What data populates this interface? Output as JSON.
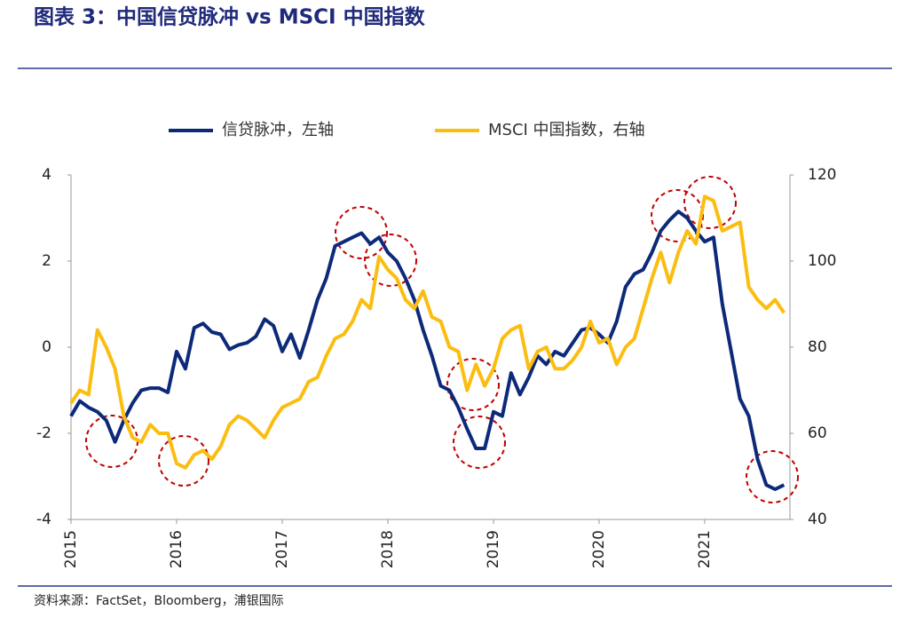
{
  "chart_data": {
    "type": "line",
    "title": "图表 3：中国信贷脉冲 vs MSCI 中国指数",
    "source": "资料来源：FactSet，Bloomberg，浦银国际",
    "categories": [
      "2015",
      null,
      null,
      null,
      null,
      null,
      null,
      null,
      null,
      null,
      null,
      null,
      "2016",
      null,
      null,
      null,
      null,
      null,
      null,
      null,
      null,
      null,
      null,
      null,
      "2017",
      null,
      null,
      null,
      null,
      null,
      null,
      null,
      null,
      null,
      null,
      null,
      "2018",
      null,
      null,
      null,
      null,
      null,
      null,
      null,
      null,
      null,
      null,
      null,
      "2019",
      null,
      null,
      null,
      null,
      null,
      null,
      null,
      null,
      null,
      null,
      null,
      "2020",
      null,
      null,
      null,
      null,
      null,
      null,
      null,
      null,
      null,
      null,
      null,
      "2021",
      null,
      null,
      null,
      null,
      null,
      null,
      null,
      null,
      null
    ],
    "series": [
      {
        "name": "信贷脉冲，左轴",
        "color": "#0d2a7a",
        "axis": "y",
        "values": [
          -1.6,
          -1.25,
          -1.4,
          -1.5,
          -1.7,
          -2.2,
          -1.7,
          -1.3,
          -1.0,
          -0.95,
          -0.95,
          -1.05,
          -0.1,
          -0.5,
          0.45,
          0.55,
          0.35,
          0.3,
          -0.05,
          0.05,
          0.1,
          0.25,
          0.65,
          0.5,
          -0.1,
          0.3,
          -0.25,
          0.4,
          1.1,
          1.6,
          2.35,
          2.45,
          2.55,
          2.65,
          2.4,
          2.55,
          2.2,
          2.0,
          1.6,
          1.1,
          0.4,
          -0.2,
          -0.9,
          -1.0,
          -1.4,
          -1.9,
          -2.35,
          -2.35,
          -1.5,
          -1.6,
          -0.6,
          -1.1,
          -0.7,
          -0.2,
          -0.4,
          -0.1,
          -0.2,
          0.1,
          0.4,
          0.45,
          0.3,
          0.1,
          0.6,
          1.4,
          1.7,
          1.8,
          2.2,
          2.7,
          2.95,
          3.15,
          3.0,
          2.7,
          2.45,
          2.55,
          1.0,
          -0.1,
          -1.2,
          -1.6,
          -2.6,
          -3.2,
          -3.3,
          -3.2
        ]
      },
      {
        "name": "MSCI 中国指数，右轴",
        "color": "#fbbd10",
        "axis": "y2",
        "values": [
          67,
          70,
          69,
          84,
          80,
          75,
          64,
          59,
          58,
          62,
          60,
          60,
          53,
          52,
          55,
          56,
          54,
          57,
          62,
          64,
          63,
          61,
          59,
          63,
          66,
          67,
          68,
          72,
          73,
          78,
          82,
          83,
          86,
          91,
          89,
          101,
          98,
          96,
          91,
          89,
          93,
          87,
          86,
          80,
          79,
          70,
          76,
          71,
          75,
          82,
          84,
          85,
          75,
          79,
          80,
          75,
          75,
          77,
          80,
          86,
          81,
          82,
          76,
          80,
          82,
          89,
          96,
          102,
          95,
          102,
          107,
          104,
          115,
          114,
          107,
          108,
          109,
          94,
          91,
          89,
          91,
          88
        ]
      }
    ],
    "ylim": [
      -4,
      4
    ],
    "yticks": [
      -4,
      -2,
      0,
      2,
      4
    ],
    "y2lim": [
      40,
      120
    ],
    "y2ticks": [
      40,
      60,
      80,
      100,
      120
    ]
  }
}
